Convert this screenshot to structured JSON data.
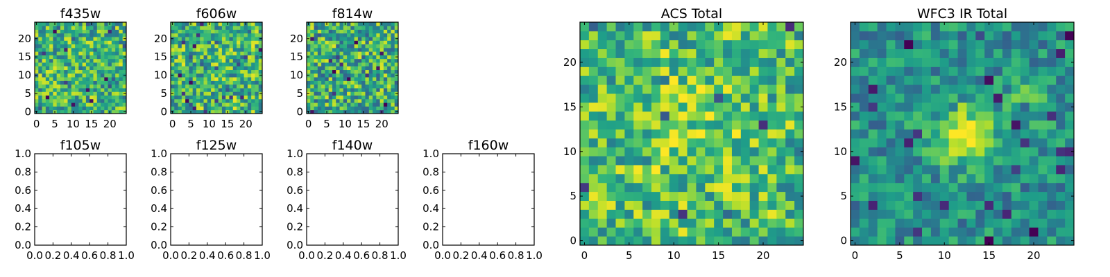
{
  "chart_data": [
    {
      "type": "heatmap",
      "title": "f435w",
      "grid": false,
      "xlim": [
        -0.5,
        24.5
      ],
      "ylim": [
        -0.5,
        24.5
      ],
      "xticks": [
        "0",
        "5",
        "10",
        "15",
        "20"
      ],
      "yticks": [
        "0",
        "5",
        "10",
        "15",
        "20"
      ],
      "colormap": "viridis",
      "size": [
        25,
        25
      ],
      "character": "speckled, mostly green-yellow with scattered dark pixels",
      "seed": 11,
      "lo": 0.35,
      "hi": 0.95,
      "hot": []
    },
    {
      "type": "heatmap",
      "title": "f606w",
      "grid": false,
      "xlim": [
        -0.5,
        24.5
      ],
      "ylim": [
        -0.5,
        24.5
      ],
      "xticks": [
        "0",
        "5",
        "10",
        "15",
        "20"
      ],
      "yticks": [
        "0",
        "5",
        "10",
        "15",
        "20"
      ],
      "colormap": "viridis",
      "size": [
        25,
        25
      ],
      "character": "speckled, mostly green-yellow with scattered dark pixels",
      "seed": 23,
      "lo": 0.35,
      "hi": 0.97,
      "hot": []
    },
    {
      "type": "heatmap",
      "title": "f814w",
      "grid": false,
      "xlim": [
        -0.5,
        24.5
      ],
      "ylim": [
        -0.5,
        24.5
      ],
      "xticks": [
        "0",
        "5",
        "10",
        "15",
        "20"
      ],
      "yticks": [
        "0",
        "5",
        "10",
        "15",
        "20"
      ],
      "colormap": "viridis",
      "size": [
        25,
        25
      ],
      "character": "speckled, mostly green-yellow with scattered dark pixels",
      "seed": 37,
      "lo": 0.3,
      "hi": 0.95,
      "hot": []
    },
    {
      "type": "empty",
      "title": "f105w",
      "xlim": [
        0,
        1
      ],
      "ylim": [
        0,
        1
      ],
      "xticks": [
        "0.0",
        "0.2",
        "0.4",
        "0.6",
        "0.8",
        "1.0"
      ],
      "yticks": [
        "0.0",
        "0.2",
        "0.4",
        "0.6",
        "0.8",
        "1.0"
      ]
    },
    {
      "type": "empty",
      "title": "f125w",
      "xlim": [
        0,
        1
      ],
      "ylim": [
        0,
        1
      ],
      "xticks": [
        "0.0",
        "0.2",
        "0.4",
        "0.6",
        "0.8",
        "1.0"
      ],
      "yticks": [
        "0.0",
        "0.2",
        "0.4",
        "0.6",
        "0.8",
        "1.0"
      ]
    },
    {
      "type": "empty",
      "title": "f140w",
      "xlim": [
        0,
        1
      ],
      "ylim": [
        0,
        1
      ],
      "xticks": [
        "0.0",
        "0.2",
        "0.4",
        "0.6",
        "0.8",
        "1.0"
      ],
      "yticks": [
        "0.0",
        "0.2",
        "0.4",
        "0.6",
        "0.8",
        "1.0"
      ]
    },
    {
      "type": "empty",
      "title": "f160w",
      "xlim": [
        0,
        1
      ],
      "ylim": [
        0,
        1
      ],
      "xticks": [
        "0.0",
        "0.2",
        "0.4",
        "0.6",
        "0.8",
        "1.0"
      ],
      "yticks": [
        "0.0",
        "0.2",
        "0.4",
        "0.6",
        "0.8",
        "1.0"
      ]
    },
    {
      "type": "heatmap",
      "title": "ACS Total",
      "grid": false,
      "xlim": [
        -0.5,
        24.5
      ],
      "ylim": [
        -0.5,
        24.5
      ],
      "xticks": [
        "0",
        "5",
        "10",
        "15",
        "20"
      ],
      "yticks": [
        "0",
        "5",
        "10",
        "15",
        "20"
      ],
      "colormap": "viridis",
      "size": [
        25,
        25
      ],
      "character": "mostly green-yellow noise, slightly brighter near center",
      "seed": 53,
      "lo": 0.4,
      "hi": 0.97,
      "hot": [
        {
          "cx": 12.5,
          "cy": 12.5,
          "r": 5,
          "amp": 0.12
        }
      ]
    },
    {
      "type": "heatmap",
      "title": "WFC3 IR Total",
      "grid": false,
      "xlim": [
        -0.5,
        24.5
      ],
      "ylim": [
        -0.5,
        24.5
      ],
      "xticks": [
        "0",
        "5",
        "10",
        "15",
        "20"
      ],
      "yticks": [
        "0",
        "5",
        "10",
        "15",
        "20"
      ],
      "colormap": "viridis",
      "size": [
        25,
        25
      ],
      "character": "green background with bright yellow blob near (12, 12)",
      "seed": 71,
      "lo": 0.3,
      "hi": 0.7,
      "hot": [
        {
          "cx": 12,
          "cy": 12,
          "r": 2.2,
          "amp": 0.5
        },
        {
          "cx": 19,
          "cy": 15.5,
          "r": 1.6,
          "amp": 0.2
        }
      ]
    }
  ]
}
